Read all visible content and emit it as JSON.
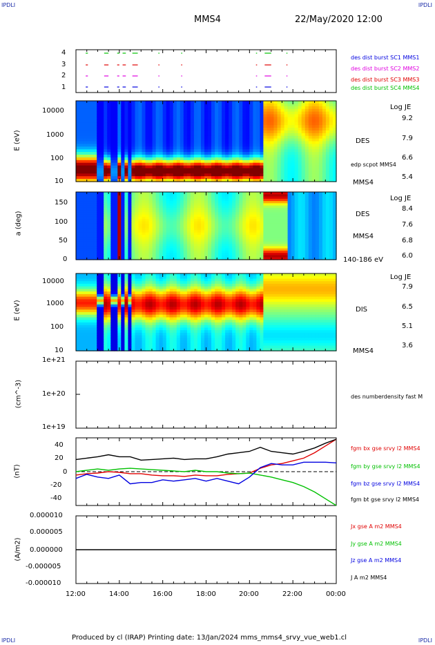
{
  "header": {
    "corner_left_top": "IPDLI",
    "corner_right_top": "IPDLI",
    "corner_left_bottom": "IPDLI",
    "corner_right_bottom": "IPDLI",
    "spacecraft": "MMS4",
    "datetime": "22/May/2020 12:00"
  },
  "footer": "Produced by cl (IRAP)   Printing date: 13/Jan/2024   mms_mms4_srvy_vue_web1.cl",
  "colors": {
    "black": "#000000",
    "red": "#e00000",
    "green": "#00c000",
    "blue": "#0000e0",
    "magenta": "#e000e0"
  },
  "chart_data": [
    {
      "type": "scatter",
      "panel": "burst-availability",
      "x_ticks": [
        "12:00",
        "14:00",
        "16:00",
        "18:00",
        "20:00",
        "22:00",
        "00:00"
      ],
      "y_ticks": [
        "1",
        "2",
        "3",
        "4"
      ],
      "legend": [
        {
          "label": "des dist burst SC1 MMS1",
          "color": "#0000e0"
        },
        {
          "label": "des dist burst SC2 MMS2",
          "color": "#e000e0"
        },
        {
          "label": "des dist burst SC3 MMS3",
          "color": "#e00000"
        },
        {
          "label": "des dist burst SC4 MMS4",
          "color": "#00c000"
        }
      ],
      "intervals_hours": [
        [
          0.45,
          0.55
        ],
        [
          1.3,
          1.5
        ],
        [
          1.9,
          2.0
        ],
        [
          2.15,
          2.3
        ],
        [
          2.6,
          2.85
        ],
        [
          3.8,
          3.85
        ],
        [
          4.85,
          4.9
        ],
        [
          8.3,
          8.35
        ],
        [
          8.7,
          9.0
        ],
        [
          9.7,
          9.75
        ]
      ]
    },
    {
      "type": "heatmap",
      "panel": "des-energy-spectrogram",
      "ylabel": "E (eV)",
      "yscale": "log",
      "y_ticks": [
        "10",
        "100",
        "1000",
        "10000"
      ],
      "right_label": "DES",
      "overlay_label": "edp scpot MMS4",
      "spacecraft_label": "MMS4",
      "colorbar": {
        "title": "Log JE",
        "ticks": [
          "9.2",
          "7.9",
          "6.6",
          "5.4"
        ],
        "range": [
          5.4,
          9.2
        ]
      }
    },
    {
      "type": "heatmap",
      "panel": "des-pitch-angle",
      "ylabel": "a (deg)",
      "y_ticks": [
        "0",
        "50",
        "100",
        "150"
      ],
      "ylim": [
        0,
        180
      ],
      "right_label": "DES",
      "spacecraft_label": "MMS4",
      "energy_range_label": "140-186 eV",
      "colorbar": {
        "title": "Log JE",
        "ticks": [
          "8.4",
          "7.6",
          "6.8",
          "6.0"
        ],
        "range": [
          6.0,
          8.4
        ]
      }
    },
    {
      "type": "heatmap",
      "panel": "dis-energy-spectrogram",
      "ylabel": "E (eV)",
      "yscale": "log",
      "y_ticks": [
        "10",
        "100",
        "1000",
        "10000"
      ],
      "right_label": "DIS",
      "spacecraft_label": "MMS4",
      "colorbar": {
        "title": "Log JE",
        "ticks": [
          "7.9",
          "6.5",
          "5.1",
          "3.6"
        ],
        "range": [
          3.6,
          7.9
        ]
      }
    },
    {
      "type": "line",
      "panel": "density",
      "ylabel": "(cm^-3)",
      "yscale": "log",
      "y_ticks": [
        "1e+21",
        "1e+20",
        "1e+19"
      ],
      "legend": [
        {
          "label": "des numberdensity fast M",
          "color": "#000000"
        }
      ]
    },
    {
      "type": "line",
      "panel": "magnetic-field",
      "ylabel": "(nT)",
      "ylim": [
        -50,
        50
      ],
      "y_ticks": [
        "40",
        "20",
        "0",
        "-20",
        "-40"
      ],
      "legend": [
        {
          "label": "fgm bx gse srvy l2 MMS4",
          "color": "#e00000"
        },
        {
          "label": "fgm by gse srvy l2 MMS4",
          "color": "#00c000"
        },
        {
          "label": "fgm bz gse srvy l2 MMS4",
          "color": "#0000e0"
        },
        {
          "label": "fgm bt gse srvy l2 MMS4",
          "color": "#000000"
        }
      ],
      "x_hours": [
        0,
        0.5,
        1,
        1.5,
        2,
        2.5,
        3,
        3.5,
        4,
        4.5,
        5,
        5.5,
        6,
        6.5,
        7,
        7.5,
        8,
        8.5,
        9,
        9.5,
        10,
        10.5,
        11,
        11.5,
        12
      ],
      "series": [
        {
          "name": "fgm bx gse srvy l2 MMS4",
          "values": [
            -5,
            -3,
            -2,
            0,
            -1,
            -3,
            -3,
            -5,
            -6,
            -6,
            -7,
            -5,
            -6,
            -6,
            -4,
            -3,
            -2,
            5,
            10,
            12,
            16,
            20,
            28,
            38,
            48
          ]
        },
        {
          "name": "fgm by gse srvy l2 MMS4",
          "values": [
            0,
            2,
            4,
            2,
            4,
            5,
            4,
            3,
            2,
            1,
            0,
            2,
            0,
            0,
            -2,
            -3,
            -2,
            -5,
            -8,
            -12,
            -16,
            -22,
            -30,
            -40,
            -50
          ]
        },
        {
          "name": "fgm bz gse srvy l2 MMS4",
          "values": [
            -10,
            -4,
            -8,
            -10,
            -5,
            -18,
            -16,
            -16,
            -12,
            -14,
            -12,
            -10,
            -14,
            -10,
            -14,
            -18,
            -8,
            6,
            12,
            10,
            10,
            14,
            14,
            14,
            13
          ]
        },
        {
          "name": "fgm bt gse srvy l2 MMS4",
          "values": [
            18,
            20,
            22,
            25,
            22,
            22,
            17,
            18,
            19,
            20,
            18,
            19,
            19,
            22,
            26,
            28,
            30,
            36,
            30,
            28,
            26,
            30,
            35,
            42,
            48
          ]
        }
      ]
    },
    {
      "type": "line",
      "panel": "current-density",
      "ylabel": "(A/m2)",
      "ylim": [
        -1e-05,
        1e-05
      ],
      "y_ticks": [
        "0.000010",
        "0.000005",
        "0.000000",
        "-0.000005",
        "-0.000010"
      ],
      "legend": [
        {
          "label": "Jx gse A m2 MMS4",
          "color": "#e00000"
        },
        {
          "label": "Jy gse A m2 MMS4",
          "color": "#00c000"
        },
        {
          "label": "Jz gse A m2 MMS4",
          "color": "#0000e0"
        },
        {
          "label": "J A m2 MMS4",
          "color": "#000000"
        }
      ]
    }
  ]
}
